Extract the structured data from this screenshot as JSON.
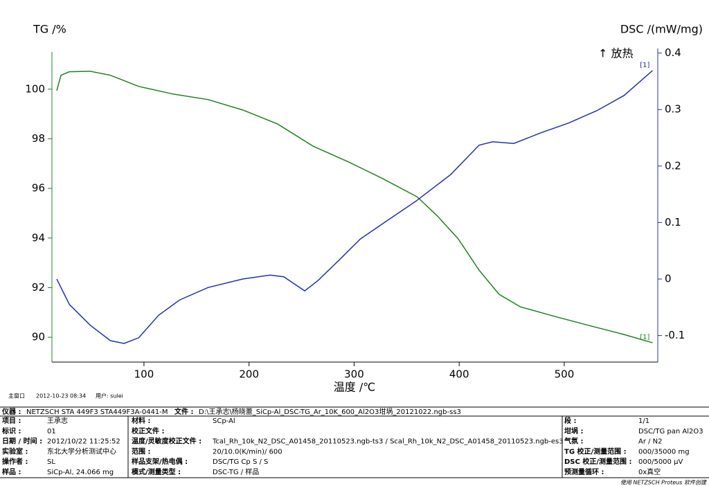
{
  "chart_data": {
    "type": "line",
    "y_label": "TG /%",
    "y2_label": "DSC /(mW/mg)",
    "x_label": "温度 /℃",
    "annotation": "↑ 放热",
    "xlim": [
      12.4,
      589
    ],
    "xticks": [
      100,
      200,
      300,
      400,
      500
    ],
    "ylim": [
      89,
      101.5
    ],
    "yticks": [
      90,
      92,
      94,
      96,
      98,
      100
    ],
    "y2lim": [
      -0.147,
      0.402
    ],
    "y2ticks": [
      -0.1,
      0.0,
      0.1,
      0.2,
      0.3,
      0.4
    ],
    "grid": false,
    "series": [
      {
        "name": "[1]",
        "color": "#208020",
        "x": [
          17,
          21,
          29,
          49,
          68,
          95,
          128,
          161,
          194,
          227,
          261,
          294,
          327,
          360,
          379,
          399,
          419,
          438,
          458,
          491,
          524,
          557,
          584
        ],
        "values": [
          99.94,
          100.56,
          100.7,
          100.72,
          100.56,
          100.11,
          99.8,
          99.58,
          99.16,
          98.6,
          97.7,
          97.08,
          96.4,
          95.66,
          94.9,
          93.97,
          92.7,
          91.73,
          91.23,
          90.84,
          90.47,
          90.11,
          89.78
        ]
      },
      {
        "name": "[1]",
        "color": "#2030b0",
        "axis": "y2",
        "x": [
          17,
          29,
          49,
          68,
          81,
          95,
          114,
          134,
          161,
          194,
          220,
          233,
          253,
          266,
          286,
          306,
          332,
          359,
          392,
          419,
          432,
          452,
          478,
          504,
          531,
          557,
          584
        ],
        "values": [
          0.0,
          -0.045,
          -0.082,
          -0.109,
          -0.114,
          -0.104,
          -0.064,
          -0.037,
          -0.015,
          0.0,
          0.007,
          0.004,
          -0.021,
          -0.002,
          0.034,
          0.071,
          0.104,
          0.138,
          0.185,
          0.237,
          0.243,
          0.24,
          0.259,
          0.276,
          0.298,
          0.325,
          0.369
        ]
      }
    ]
  },
  "footer": {
    "window": "主窗口",
    "timestamp": "2012-10-23 08:34",
    "user": "用户: sulei",
    "instrument": [
      "仪器 :",
      "NETZSCH STA 449F3 STA449F3A-0441-M"
    ],
    "file": [
      "文件 :",
      "D:\\王承志\\杨晓蕾_SiCp-Al_DSC-TG_Ar_10K_600_Al2O3坩埚_20121022.ngb-ss3"
    ],
    "left": [
      [
        "项目 :",
        "王承志"
      ],
      [
        "标识 :",
        "01"
      ],
      [
        "日期 / 时间 :",
        "2012/10/22 11:25:52"
      ],
      [
        "实验室 :",
        "东北大学分析测试中心"
      ],
      [
        "操作者 :",
        "SL"
      ],
      [
        "样品 :",
        "SiCp-Al, 24.066 mg"
      ]
    ],
    "middle": [
      [
        "材料 :",
        "SCp-Al"
      ],
      [
        "校正文件 :"
      ],
      [
        "温度/灵敏度校正文件 :",
        "Tcal_Rh_10k_N2_DSC_A01458_20110523.ngb-ts3 / Scal_Rh_10k_N2_DSC_A01458_20110523.ngb-es3"
      ],
      [
        "范围 :",
        "20/10.0(K/min)/ 600"
      ],
      [
        "样品支架/热电偶 :",
        "DSC/TG Cp S / S"
      ],
      [
        "模式/测量类型 :",
        "DSC-TG / 样品"
      ]
    ],
    "right": [
      [
        "段 :",
        "1/1"
      ],
      [
        "坩埚 :",
        "DSC/TG pan Al2O3"
      ],
      [
        "气氛 :",
        "Ar / N2"
      ],
      [
        "TG 校正/测量范围 :",
        "000/35000 mg"
      ],
      [
        "DSC 校正/测量范围 :",
        "000/5000 µV"
      ],
      [
        "预测量循环 :",
        "0x真空"
      ]
    ],
    "credit": "使用 NETZSCH Proteus 软件创建"
  }
}
